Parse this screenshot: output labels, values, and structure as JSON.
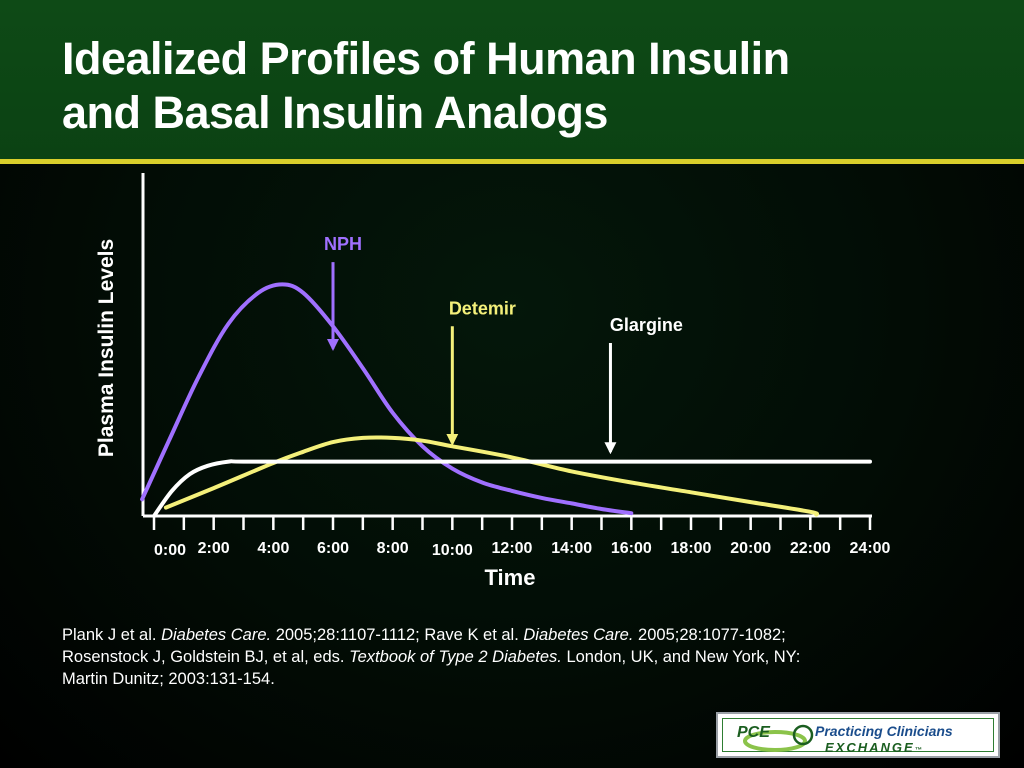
{
  "slide": {
    "title_line1": "Idealized Profiles of Human Insulin",
    "title_line2": "and Basal Insulin Analogs",
    "colors": {
      "header_bg": "#0b4213",
      "header_rule": "#d9cf2b",
      "background": "#020c05",
      "nph": "#a070ff",
      "detemir": "#f4f07a",
      "glargine": "#ffffff"
    }
  },
  "chart_data": {
    "type": "line",
    "title": "",
    "xlabel": "Time",
    "ylabel": "Plasma Insulin Levels",
    "xlim": [
      0,
      24
    ],
    "ylim": [
      0,
      100
    ],
    "y_ticks_shown": false,
    "grid": false,
    "x_tick_labels": [
      "0:00",
      "2:00",
      "4:00",
      "6:00",
      "8:00",
      "10:00",
      "12:00",
      "14:00",
      "16:00",
      "18:00",
      "20:00",
      "22:00",
      "24:00"
    ],
    "x_tick_values": [
      0,
      2,
      4,
      6,
      8,
      10,
      12,
      14,
      16,
      18,
      20,
      22,
      24
    ],
    "minor_tick_step": 1,
    "series": [
      {
        "name": "NPH",
        "color": "#a070ff",
        "x": [
          -0.4,
          0.5,
          1.5,
          2.5,
          3.5,
          4.3,
          5.0,
          6.0,
          7.0,
          8.0,
          9.0,
          10.0,
          11.0,
          12.0,
          13.0,
          14.0,
          15.0,
          16.0
        ],
        "y": [
          6,
          27,
          50,
          69,
          80,
          83,
          80,
          68,
          53,
          37,
          25,
          17,
          12,
          9,
          6.5,
          4.5,
          2.5,
          1
        ]
      },
      {
        "name": "Detemir",
        "color": "#f4f07a",
        "x": [
          0.4,
          2.0,
          4.0,
          5.0,
          6.0,
          7.0,
          8.0,
          9.0,
          10.0,
          12.0,
          14.0,
          16.0,
          18.0,
          20.0,
          22.0,
          22.2
        ],
        "y": [
          3,
          10,
          19,
          23,
          26.5,
          28,
          28,
          27,
          25,
          21,
          16,
          12,
          8.5,
          5,
          1.5,
          0.5
        ]
      },
      {
        "name": "Glargine",
        "color": "#ffffff",
        "x": [
          0.0,
          0.6,
          1.2,
          1.8,
          2.5,
          3.0,
          6.0,
          10.0,
          14.0,
          18.0,
          22.0,
          24.0
        ],
        "y": [
          0,
          9,
          15,
          18,
          19.5,
          19.5,
          19.5,
          19.5,
          19.5,
          19.5,
          19.5,
          19.5
        ]
      }
    ],
    "annotations": [
      {
        "label": "NPH",
        "color": "#a070ff",
        "arrow_x": 6.0,
        "arrow_from_y": 91,
        "arrow_to_y": 60
      },
      {
        "label": "Detemir",
        "color": "#f4f07a",
        "arrow_x": 10.0,
        "arrow_from_y": 68,
        "arrow_to_y": 26
      },
      {
        "label": "Glargine",
        "color": "#ffffff",
        "arrow_x": 15.3,
        "arrow_from_y": 62,
        "arrow_to_y": 23
      }
    ]
  },
  "references": {
    "line1_a": "Plank J et al. ",
    "line1_b": "Diabetes Care.",
    "line1_c": " 2005;28:1107-1112; Rave K et al. ",
    "line1_d": "Diabetes Care.",
    "line1_e": " 2005;28:1077-1082;",
    "line2_a": "Rosenstock J, Goldstein BJ, et al, eds. ",
    "line2_b": "Textbook of Type 2 Diabetes.",
    "line2_c": " London, UK, and New York, NY:",
    "line3": "Martin Dunitz; 2003:131-154."
  },
  "logo": {
    "mark": "PCE",
    "name": "Practicing Clinicians",
    "sub": "EXCHANGE",
    "tm": "™"
  }
}
